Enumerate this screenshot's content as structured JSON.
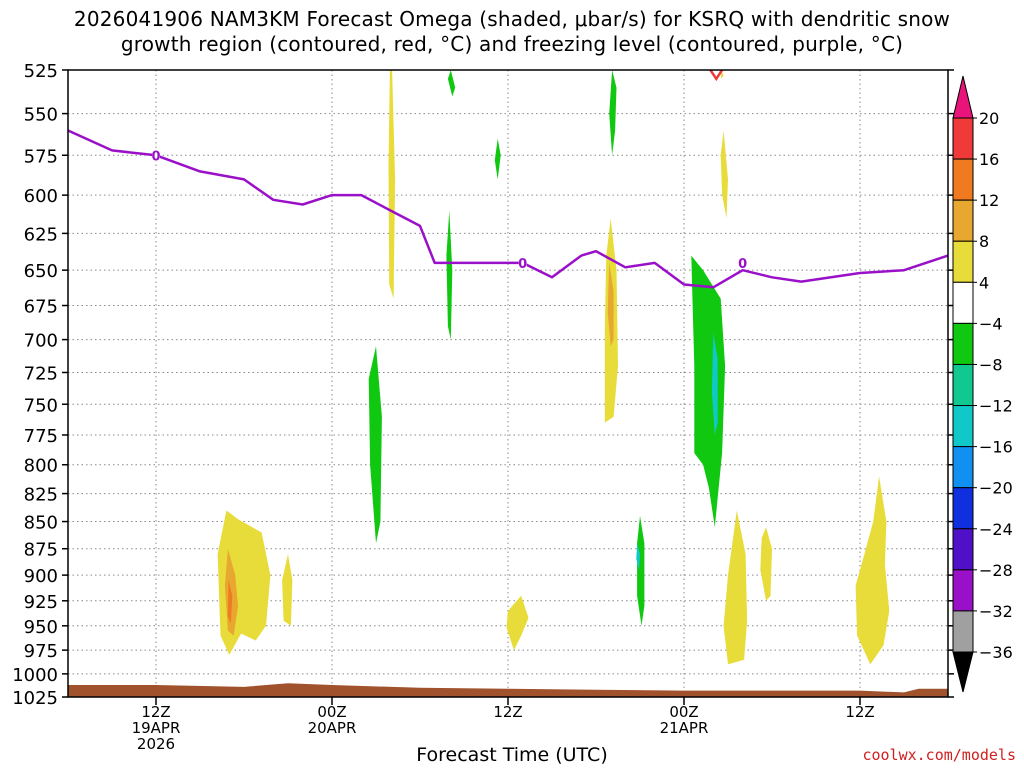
{
  "title_line1": "2026041906 NAM3KM Forecast Omega (shaded, μbar/s) for KSRQ with dendritic snow",
  "title_line2": "growth region (contoured, red, °C) and freezing level (contoured, purple, °C)",
  "credit": "coolwx.com/models",
  "chart_data": {
    "type": "heatmap",
    "xlabel": "Forecast Time (UTC)",
    "x_range_hours": [
      0,
      60
    ],
    "ylim": [
      525,
      1025
    ],
    "y_scale": "log-pressure",
    "yticks": [
      525,
      550,
      575,
      600,
      625,
      650,
      675,
      700,
      725,
      750,
      775,
      800,
      825,
      850,
      875,
      900,
      925,
      950,
      975,
      1000,
      1025
    ],
    "xticks": [
      {
        "hour": 6,
        "lines": [
          "12Z",
          "19APR",
          "2026"
        ]
      },
      {
        "hour": 18,
        "lines": [
          "00Z",
          "20APR"
        ]
      },
      {
        "hour": 30,
        "lines": [
          "12Z"
        ]
      },
      {
        "hour": 42,
        "lines": [
          "00Z",
          "21APR"
        ]
      },
      {
        "hour": 54,
        "lines": [
          "12Z"
        ]
      }
    ],
    "colorbar": {
      "labels": [
        "20",
        "16",
        "12",
        "8",
        "4",
        "−4",
        "−8",
        "−12",
        "−16",
        "−20",
        "−24",
        "−28",
        "−32",
        "−36"
      ],
      "colors": [
        "#e8147a",
        "#f03a3a",
        "#f07a20",
        "#e8a830",
        "#e8dc3a",
        "#ffffff",
        "#10c810",
        "#10c890",
        "#10c8c8",
        "#1090f0",
        "#1030e0",
        "#5010c8",
        "#9a10c8",
        "#a0a0a0",
        "#000000"
      ]
    },
    "freezing_level": {
      "label": "0",
      "color": "#9a10c8",
      "points": [
        [
          0,
          560
        ],
        [
          3,
          572
        ],
        [
          6,
          575
        ],
        [
          9,
          585
        ],
        [
          12,
          590
        ],
        [
          14,
          603
        ],
        [
          16,
          606
        ],
        [
          18,
          600
        ],
        [
          20,
          600
        ],
        [
          22,
          610
        ],
        [
          24,
          620
        ],
        [
          25,
          645
        ],
        [
          27,
          645
        ],
        [
          31,
          645
        ],
        [
          33,
          655
        ],
        [
          35,
          640
        ],
        [
          36,
          637
        ],
        [
          38,
          648
        ],
        [
          40,
          645
        ],
        [
          42,
          660
        ],
        [
          44,
          662
        ],
        [
          46,
          650
        ],
        [
          48,
          655
        ],
        [
          50,
          658
        ],
        [
          54,
          652
        ],
        [
          57,
          650
        ],
        [
          60,
          640
        ]
      ],
      "label_positions": [
        [
          6,
          575
        ],
        [
          31,
          645
        ],
        [
          46,
          645
        ]
      ]
    },
    "omega_regions": [
      {
        "color": "#e8dc3a",
        "pts": [
          [
            10.8,
            840
          ],
          [
            11.6,
            848
          ],
          [
            13.2,
            860
          ],
          [
            13.8,
            900
          ],
          [
            13.5,
            950
          ],
          [
            12.8,
            965
          ],
          [
            11.8,
            958
          ],
          [
            11,
            980
          ],
          [
            10.4,
            960
          ],
          [
            10.2,
            880
          ]
        ]
      },
      {
        "color": "#e8a830",
        "pts": [
          [
            10.9,
            875
          ],
          [
            11.4,
            900
          ],
          [
            11.6,
            930
          ],
          [
            11.3,
            960
          ],
          [
            10.9,
            955
          ],
          [
            10.7,
            910
          ]
        ]
      },
      {
        "color": "#f07a20",
        "pts": [
          [
            10.95,
            905
          ],
          [
            11.2,
            920
          ],
          [
            11.1,
            948
          ],
          [
            10.9,
            940
          ]
        ]
      },
      {
        "color": "#e8dc3a",
        "pts": [
          [
            15,
            880
          ],
          [
            15.3,
            905
          ],
          [
            15.2,
            950
          ],
          [
            14.7,
            945
          ],
          [
            14.6,
            905
          ]
        ]
      },
      {
        "color": "#e8dc3a",
        "pts": [
          [
            22.1,
            525
          ],
          [
            22.3,
            590
          ],
          [
            22.2,
            670
          ],
          [
            21.9,
            660
          ],
          [
            21.85,
            580
          ],
          [
            21.95,
            525
          ]
        ]
      },
      {
        "color": "#10c810",
        "pts": [
          [
            21,
            705
          ],
          [
            21.4,
            760
          ],
          [
            21.3,
            850
          ],
          [
            21.0,
            870
          ],
          [
            20.6,
            800
          ],
          [
            20.5,
            730
          ]
        ]
      },
      {
        "color": "#10c810",
        "pts": [
          [
            26.1,
            525
          ],
          [
            26.4,
            535
          ],
          [
            26.2,
            540
          ],
          [
            25.9,
            530
          ]
        ]
      },
      {
        "color": "#10c810",
        "pts": [
          [
            26.0,
            610
          ],
          [
            26.2,
            650
          ],
          [
            26.1,
            700
          ],
          [
            25.9,
            690
          ],
          [
            25.8,
            640
          ]
        ]
      },
      {
        "color": "#10c810",
        "pts": [
          [
            29.3,
            565
          ],
          [
            29.5,
            575
          ],
          [
            29.3,
            590
          ],
          [
            29.1,
            578
          ]
        ]
      },
      {
        "color": "#e8dc3a",
        "pts": [
          [
            30.3,
            930
          ],
          [
            30.9,
            920
          ],
          [
            31.4,
            942
          ],
          [
            30.9,
            960
          ],
          [
            30.4,
            975
          ],
          [
            29.9,
            952
          ],
          [
            30,
            935
          ]
        ]
      },
      {
        "color": "#10c810",
        "pts": [
          [
            37.1,
            525
          ],
          [
            37.4,
            535
          ],
          [
            37.3,
            560
          ],
          [
            37.1,
            575
          ],
          [
            36.9,
            550
          ]
        ]
      },
      {
        "color": "#e8dc3a",
        "pts": [
          [
            37.0,
            615
          ],
          [
            37.4,
            650
          ],
          [
            37.5,
            720
          ],
          [
            37.2,
            760
          ],
          [
            36.6,
            765
          ],
          [
            36.6,
            690
          ],
          [
            36.7,
            640
          ]
        ]
      },
      {
        "color": "#e8a830",
        "pts": [
          [
            36.9,
            645
          ],
          [
            37.2,
            665
          ],
          [
            37.2,
            700
          ],
          [
            37.0,
            705
          ],
          [
            36.8,
            680
          ]
        ]
      },
      {
        "color": "#10c810",
        "pts": [
          [
            39.0,
            845
          ],
          [
            39.3,
            870
          ],
          [
            39.3,
            930
          ],
          [
            39.1,
            950
          ],
          [
            38.8,
            920
          ],
          [
            38.8,
            870
          ]
        ]
      },
      {
        "color": "#10c8c8",
        "pts": [
          [
            38.8,
            870
          ],
          [
            39.0,
            880
          ],
          [
            38.95,
            895
          ],
          [
            38.75,
            885
          ]
        ]
      },
      {
        "color": "#10c810",
        "pts": [
          [
            42.5,
            640
          ],
          [
            43.3,
            650
          ],
          [
            44.5,
            670
          ],
          [
            44.8,
            720
          ],
          [
            44.6,
            790
          ],
          [
            44.1,
            855
          ],
          [
            43.7,
            820
          ],
          [
            43.3,
            800
          ],
          [
            42.7,
            790
          ],
          [
            42.7,
            720
          ],
          [
            42.6,
            680
          ]
        ]
      },
      {
        "color": "#10c8c8",
        "pts": [
          [
            44.0,
            695
          ],
          [
            44.3,
            715
          ],
          [
            44.3,
            765
          ],
          [
            44.1,
            775
          ],
          [
            43.9,
            740
          ]
        ]
      },
      {
        "color": "#e8dc3a",
        "pts": [
          [
            44.5,
            525
          ],
          [
            44.7,
            528
          ],
          [
            44.55,
            530
          ]
        ]
      },
      {
        "color": "#e8dc3a",
        "pts": [
          [
            44.7,
            560
          ],
          [
            45.0,
            590
          ],
          [
            44.9,
            615
          ],
          [
            44.6,
            600
          ],
          [
            44.5,
            575
          ]
        ]
      },
      {
        "color": "#e8dc3a",
        "pts": [
          [
            45.6,
            840
          ],
          [
            46.2,
            880
          ],
          [
            46.3,
            945
          ],
          [
            46.1,
            985
          ],
          [
            45.0,
            990
          ],
          [
            44.7,
            950
          ],
          [
            45.0,
            900
          ]
        ]
      },
      {
        "color": "#e8dc3a",
        "pts": [
          [
            47.6,
            855
          ],
          [
            48.0,
            875
          ],
          [
            47.9,
            920
          ],
          [
            47.6,
            925
          ],
          [
            47.2,
            895
          ],
          [
            47.3,
            865
          ]
        ]
      },
      {
        "color": "#e8dc3a",
        "pts": [
          [
            55.3,
            810
          ],
          [
            55.8,
            850
          ],
          [
            55.7,
            890
          ],
          [
            56.0,
            935
          ],
          [
            55.6,
            970
          ],
          [
            54.7,
            990
          ],
          [
            53.8,
            960
          ],
          [
            53.7,
            910
          ],
          [
            54.3,
            880
          ],
          [
            54.9,
            850
          ]
        ]
      }
    ],
    "dgz_contours": [
      {
        "color": "#f03a3a",
        "pts": [
          [
            43.8,
            525
          ],
          [
            44.2,
            530
          ],
          [
            44.6,
            525
          ]
        ]
      }
    ],
    "terrain": {
      "color": "#a0522d",
      "points": [
        [
          0,
          1012
        ],
        [
          6,
          1012
        ],
        [
          12,
          1014
        ],
        [
          15,
          1010
        ],
        [
          18,
          1012
        ],
        [
          24,
          1015
        ],
        [
          30,
          1016
        ],
        [
          36,
          1017
        ],
        [
          42,
          1018
        ],
        [
          48,
          1018
        ],
        [
          54,
          1018
        ],
        [
          57,
          1020
        ],
        [
          58,
          1016
        ],
        [
          60,
          1016
        ]
      ]
    }
  }
}
